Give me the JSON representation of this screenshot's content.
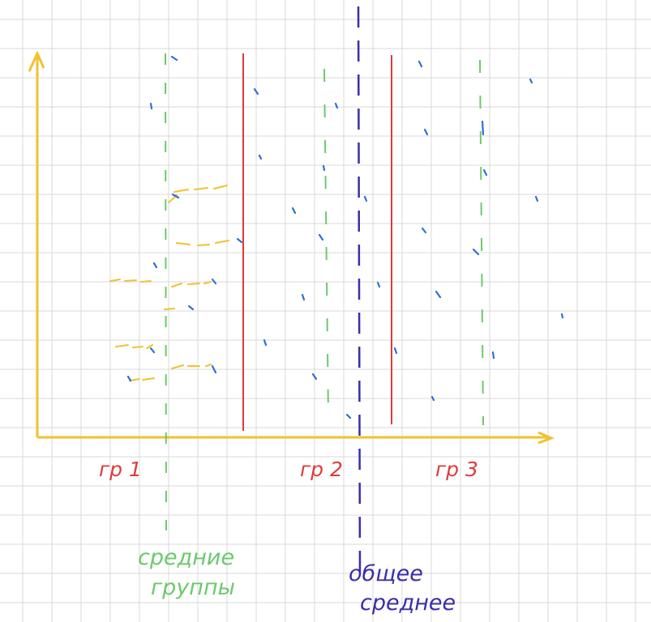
{
  "colors": {
    "grid": "#d9d9d9",
    "axis": "#f2c12e",
    "divider": "#e03a3a",
    "group_mean": "#6cc96c",
    "overall_mean": "#3a2fa8",
    "points": "#2f6fd6",
    "deviation": "#f2c12e",
    "group_label": "#e03a3a"
  },
  "groups": [
    {
      "label": "гр 1"
    },
    {
      "label": "гр 2"
    },
    {
      "label": "гр 3"
    }
  ],
  "annotations": {
    "group_mean": [
      "средние",
      "группы"
    ],
    "overall_mean": [
      "общее",
      "среднее"
    ]
  }
}
